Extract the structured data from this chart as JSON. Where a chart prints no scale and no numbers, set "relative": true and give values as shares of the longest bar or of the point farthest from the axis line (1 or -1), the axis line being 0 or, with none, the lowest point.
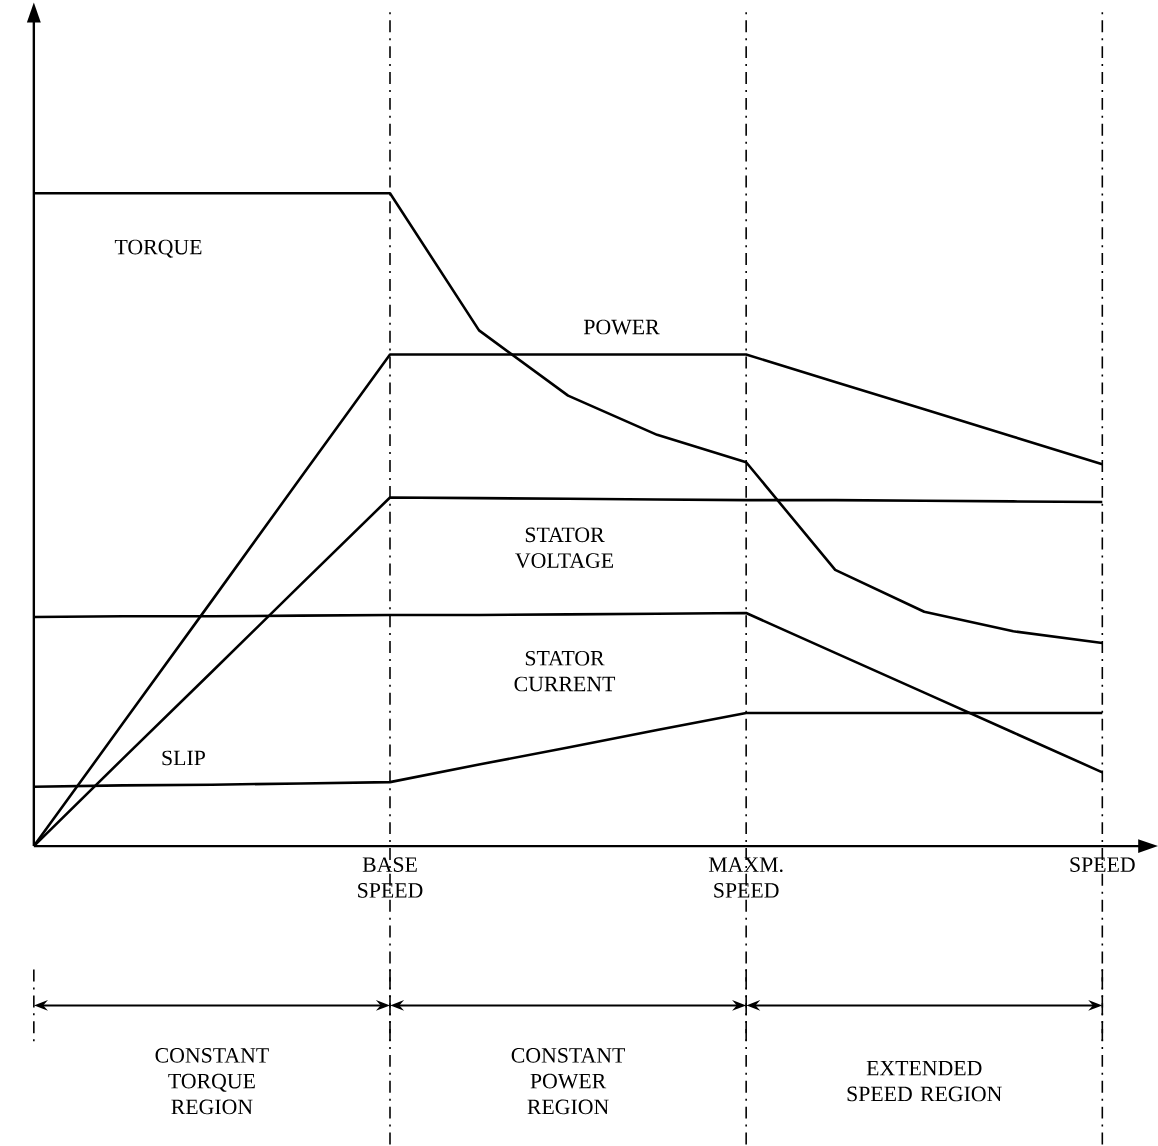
{
  "chart_data": {
    "type": "line",
    "relative": true,
    "categories": [
      null,
      null,
      null,
      null,
      "BASE SPEED",
      null,
      null,
      null,
      "MAXM. SPEED",
      null,
      null,
      null,
      "SPEED"
    ],
    "series": [
      {
        "name": "TORQUE",
        "color": "#000000",
        "values": [
          1.0,
          1.0,
          1.0,
          1.0,
          1.0,
          0.79,
          0.69,
          0.63,
          0.588,
          0.423,
          0.359,
          0.329,
          0.311
        ]
      },
      {
        "name": "POWER",
        "color": "#000000",
        "values": [
          0,
          0.188,
          0.376,
          0.565,
          0.753,
          0.753,
          0.753,
          0.753,
          0.753,
          0.711,
          0.669,
          0.627,
          0.585
        ]
      },
      {
        "name": "STATOR VOLTAGE",
        "color": "#000000",
        "values": [
          0,
          0.134,
          0.267,
          0.401,
          0.534,
          0.533,
          0.532,
          0.531,
          0.53,
          0.53,
          0.529,
          0.528,
          0.527
        ]
      },
      {
        "name": "STATOR CURRENT",
        "color": "#000000",
        "values": [
          0.351,
          0.352,
          0.352,
          0.353,
          0.354,
          0.354,
          0.355,
          0.356,
          0.357,
          0.296,
          0.235,
          0.174,
          0.113
        ]
      },
      {
        "name": "SLIP",
        "color": "#000000",
        "values": [
          0.091,
          0.093,
          0.094,
          0.096,
          0.098,
          0.125,
          0.151,
          0.178,
          0.204,
          0.204,
          0.204,
          0.204,
          0.204
        ]
      }
    ],
    "annotations": [
      "CONSTANT TORQUE REGION",
      "CONSTANT POWER REGION",
      "EXTENDED SPEED REGION"
    ],
    "ref_lines": [
      {
        "axis": "x",
        "value": "BASE SPEED",
        "line_style": "dashdot"
      },
      {
        "axis": "x",
        "value": "MAXM. SPEED",
        "line_style": "dashdot"
      },
      {
        "axis": "x",
        "value": "SPEED",
        "line_style": "dashdot"
      }
    ]
  }
}
